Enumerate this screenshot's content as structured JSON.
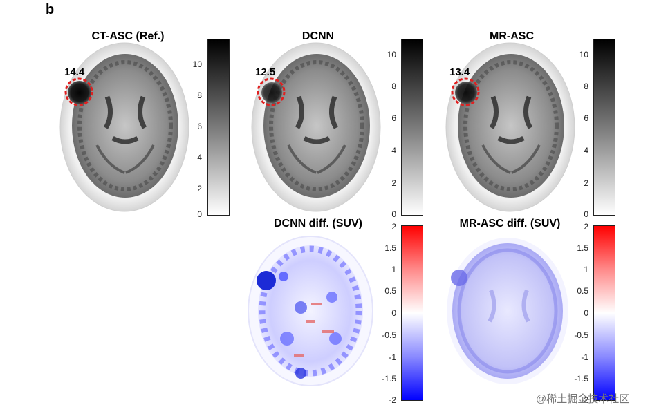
{
  "figure": {
    "panel_letter": "b",
    "panels": [
      {
        "id": "ct",
        "title": "CT-ASC (Ref.)",
        "value": "14.4"
      },
      {
        "id": "dcnn",
        "title": "DCNN",
        "value": "12.5"
      },
      {
        "id": "mr",
        "title": "MR-ASC",
        "value": "13.4"
      },
      {
        "id": "dcnn_diff",
        "title": "DCNN diff. (SUV)"
      },
      {
        "id": "mr_diff",
        "title": "MR-ASC diff. (SUV)"
      }
    ],
    "suv_colorbar": {
      "ticks": [
        "10",
        "8",
        "6",
        "4",
        "2",
        "0"
      ],
      "colormap": "grayscale",
      "range": [
        0,
        11
      ]
    },
    "diff_colorbar": {
      "ticks": [
        "2",
        "1.5",
        "1",
        "0.5",
        "0",
        "-0.5",
        "-1",
        "-1.5",
        "-2"
      ],
      "colormap": "blue-white-red",
      "range": [
        -2,
        2
      ]
    },
    "highlight_circle_color": "#e02020"
  },
  "watermark": "@稀土掘金技术社区"
}
